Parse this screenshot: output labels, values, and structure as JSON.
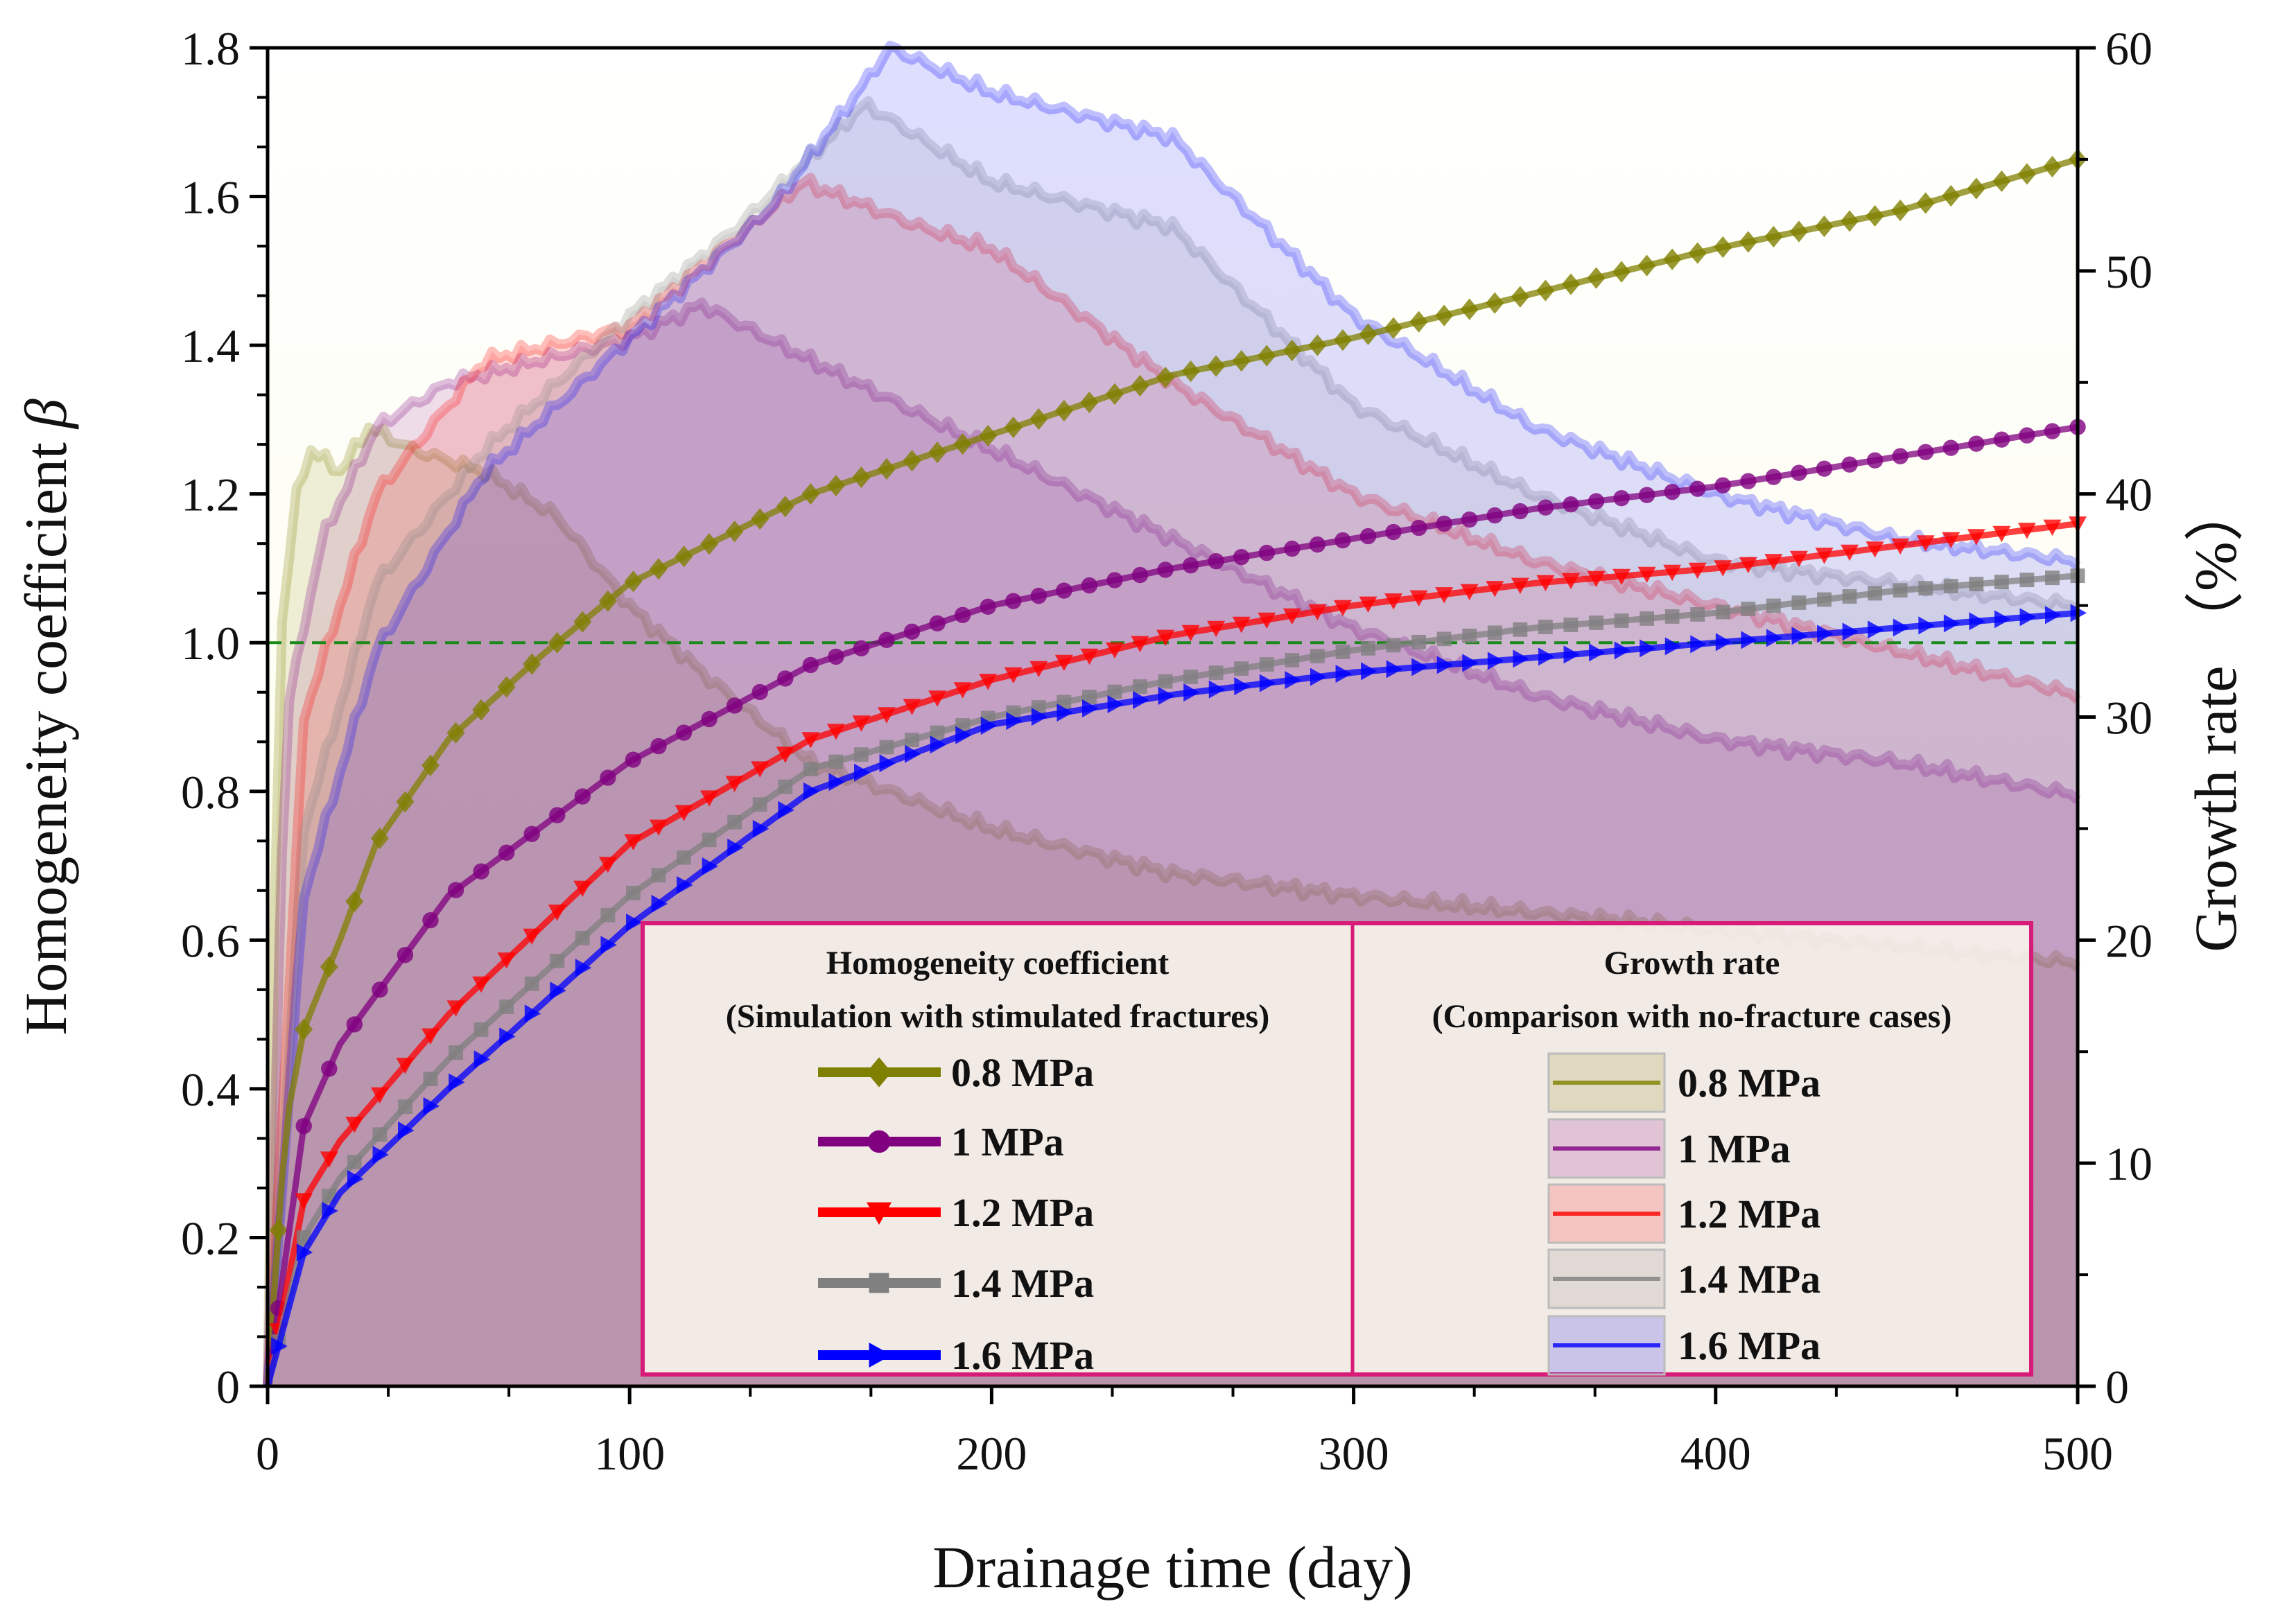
{
  "chart_data": {
    "type": "line",
    "xlabel": "Drainage time (day)",
    "ylabel": "Homogeneity coefficient",
    "ylabel_symbol": "β",
    "y2label": "Growth rate （%）",
    "xlim": [
      0,
      500
    ],
    "ylim": [
      0,
      1.8
    ],
    "y2lim": [
      0,
      60
    ],
    "x_ticks": [
      "0",
      "100",
      "200",
      "300",
      "400",
      "500"
    ],
    "y_ticks": [
      "0",
      "0.2",
      "0.4",
      "0.6",
      "0.8",
      "1.0",
      "1.2",
      "1.4",
      "1.6",
      "1.8"
    ],
    "y2_ticks": [
      "0",
      "10",
      "20",
      "30",
      "40",
      "50",
      "60"
    ],
    "reference_line": {
      "y": 1.0,
      "color": "#1a8a1a",
      "style": "dashed"
    },
    "grid": false,
    "legend_placement": "bottom-right",
    "legend": {
      "left_header": [
        "Homogeneity coefficient",
        "(Simulation with stimulated fractures)"
      ],
      "right_header": [
        "Growth rate",
        "(Comparison with no-fracture cases)"
      ]
    },
    "series": [
      {
        "name": "0.8 MPa",
        "color": "#808000",
        "marker": "diamond",
        "homogeneity": {
          "x": [
            0,
            5,
            10,
            20,
            30,
            50,
            75,
            100,
            150,
            200,
            250,
            300,
            350,
            400,
            450,
            500
          ],
          "y": [
            0,
            0.35,
            0.48,
            0.6,
            0.73,
            0.87,
            0.98,
            1.08,
            1.2,
            1.28,
            1.36,
            1.41,
            1.47,
            1.53,
            1.58,
            1.65
          ]
        },
        "growth_rate": {
          "x": [
            0,
            3,
            8,
            12,
            20,
            28,
            40,
            60,
            80,
            100,
            120,
            150,
            200,
            250,
            300,
            400,
            500
          ],
          "y": [
            0,
            33,
            40,
            42,
            41,
            43,
            42,
            41,
            39,
            35,
            32,
            28,
            25,
            23,
            22,
            20.5,
            19
          ]
        }
      },
      {
        "name": "1 MPa",
        "color": "#800080",
        "marker": "circle",
        "homogeneity": {
          "x": [
            0,
            10,
            20,
            50,
            100,
            150,
            200,
            250,
            300,
            350,
            400,
            450,
            500
          ],
          "y": [
            0,
            0.35,
            0.46,
            0.66,
            0.84,
            0.97,
            1.05,
            1.1,
            1.14,
            1.18,
            1.21,
            1.25,
            1.29
          ]
        },
        "growth_rate": {
          "x": [
            0,
            5,
            15,
            30,
            50,
            75,
            100,
            120,
            150,
            200,
            250,
            300,
            350,
            400,
            450,
            500
          ],
          "y": [
            0,
            30,
            38,
            43,
            45,
            46,
            47,
            48.5,
            46,
            42,
            38,
            34,
            31,
            29,
            28,
            26.5
          ]
        }
      },
      {
        "name": "1.2 MPa",
        "color": "#ff0000",
        "marker": "triangle-down",
        "homogeneity": {
          "x": [
            0,
            10,
            20,
            50,
            100,
            150,
            200,
            250,
            300,
            350,
            400,
            450,
            500
          ],
          "y": [
            0,
            0.25,
            0.33,
            0.5,
            0.73,
            0.87,
            0.95,
            1.01,
            1.05,
            1.08,
            1.1,
            1.13,
            1.16
          ]
        },
        "growth_rate": {
          "x": [
            0,
            10,
            30,
            60,
            100,
            148,
            180,
            200,
            250,
            300,
            350,
            400,
            450,
            500
          ],
          "y": [
            0,
            30,
            40,
            46,
            47.5,
            54,
            52,
            51,
            45,
            40,
            37,
            35,
            33,
            31
          ]
        }
      },
      {
        "name": "1.4 MPa",
        "color": "#808080",
        "marker": "square",
        "homogeneity": {
          "x": [
            0,
            10,
            20,
            50,
            100,
            150,
            200,
            250,
            300,
            350,
            400,
            450,
            500
          ],
          "y": [
            0,
            0.2,
            0.28,
            0.44,
            0.66,
            0.83,
            0.9,
            0.95,
            0.99,
            1.02,
            1.04,
            1.07,
            1.09
          ]
        },
        "growth_rate": {
          "x": [
            0,
            10,
            30,
            60,
            100,
            130,
            165,
            200,
            250,
            300,
            350,
            400,
            450,
            500
          ],
          "y": [
            0,
            25,
            36,
            42,
            48,
            52,
            57.5,
            54,
            52,
            44,
            40,
            37,
            36,
            35
          ]
        }
      },
      {
        "name": "1.6 MPa",
        "color": "#0000ff",
        "marker": "triangle-right",
        "homogeneity": {
          "x": [
            0,
            10,
            20,
            50,
            100,
            150,
            200,
            250,
            300,
            350,
            400,
            450,
            500
          ],
          "y": [
            0,
            0.18,
            0.26,
            0.4,
            0.62,
            0.8,
            0.89,
            0.93,
            0.96,
            0.98,
            1.0,
            1.02,
            1.04
          ]
        },
        "growth_rate": {
          "x": [
            0,
            10,
            30,
            60,
            100,
            140,
            172,
            200,
            250,
            300,
            350,
            400,
            450,
            500
          ],
          "y": [
            0,
            22,
            33,
            41,
            47,
            53,
            60,
            58,
            56,
            48,
            43,
            40,
            38,
            37
          ]
        }
      }
    ]
  }
}
